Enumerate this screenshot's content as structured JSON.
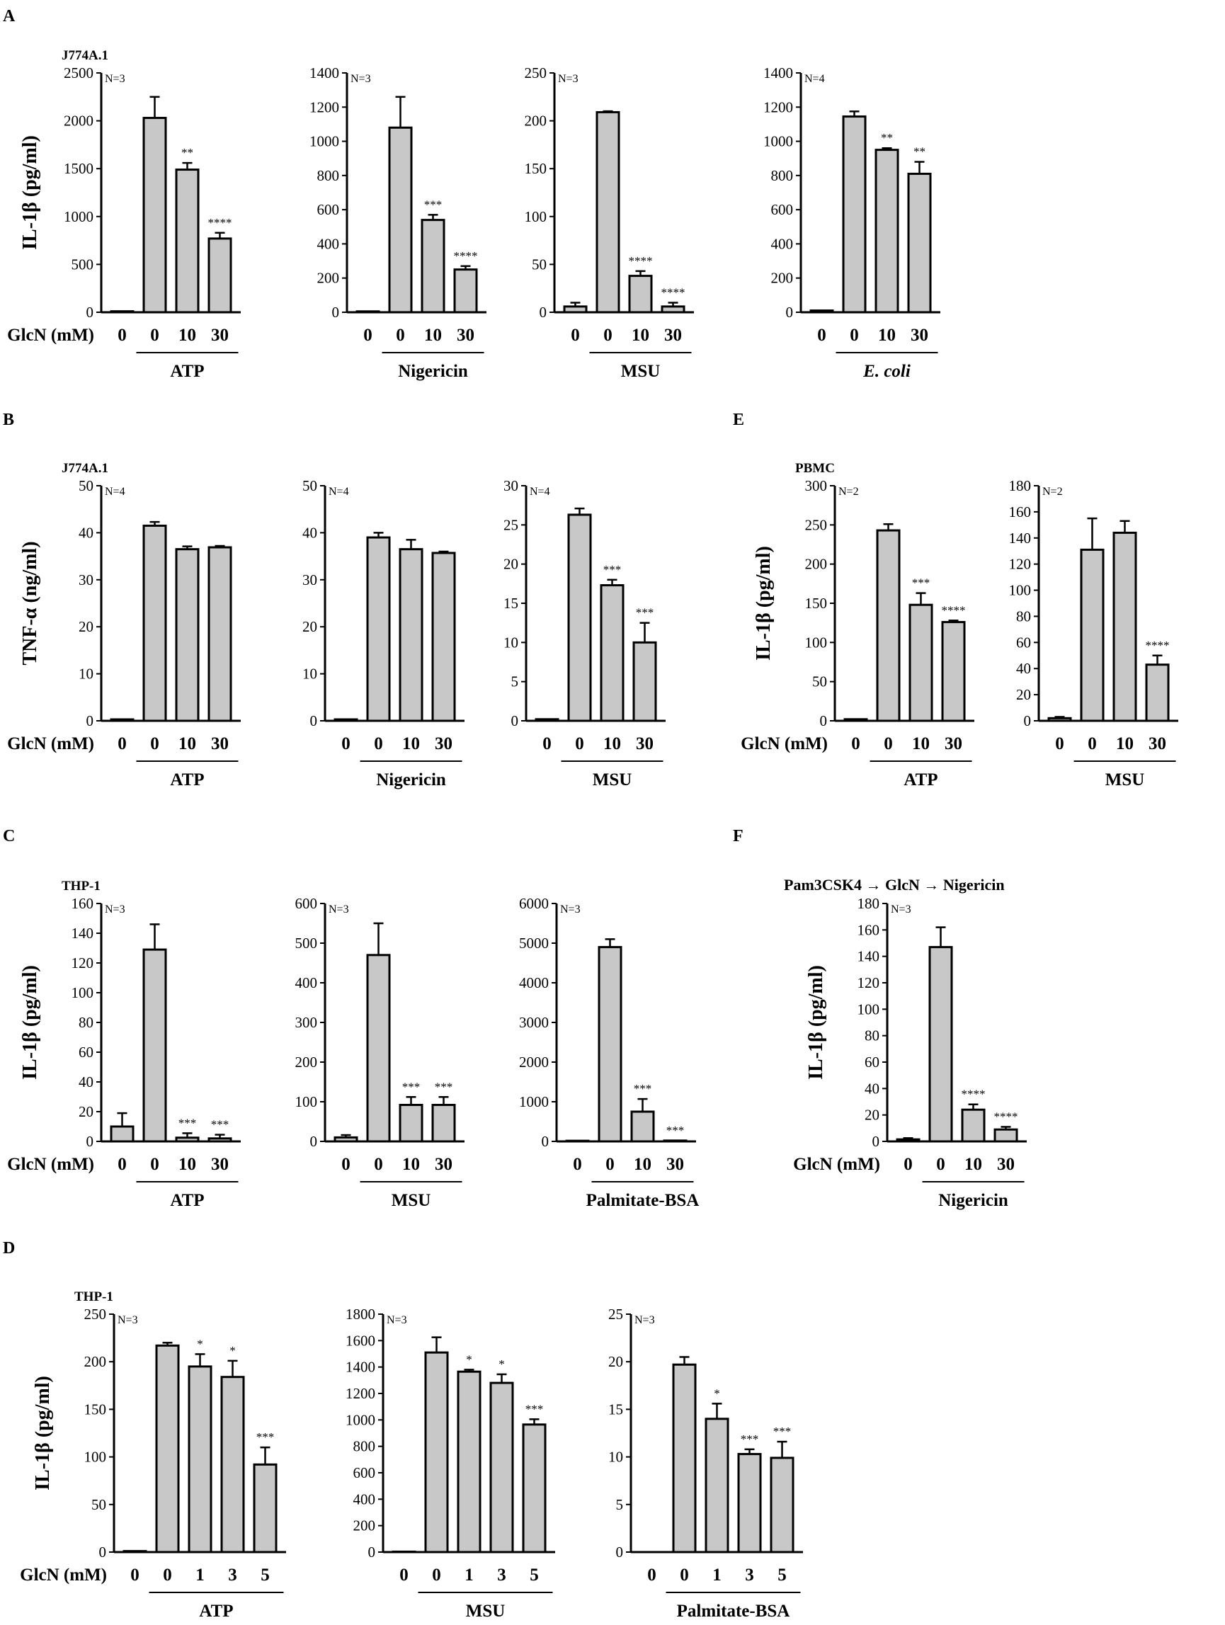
{
  "figure": {
    "glcn_label": "GlcN (mM)",
    "panel_letters": [
      "A",
      "B",
      "C",
      "D",
      "E",
      "F"
    ],
    "colors": {
      "bar": "#c8c8c8",
      "stroke": "#000000",
      "star": "#777777"
    }
  },
  "chart_data": [
    {
      "type": "bar",
      "panel": "A",
      "cell_label": "J774A.1",
      "n_label": "N=3",
      "ylabel": "IL-1β (pg/ml)",
      "ylim": [
        0,
        2500
      ],
      "yticks": [
        0,
        500,
        1000,
        1500,
        2000,
        2500
      ],
      "categories": [
        "0",
        "0",
        "10",
        "30"
      ],
      "values": [
        10,
        2030,
        1490,
        770
      ],
      "errors": [
        0,
        220,
        70,
        60
      ],
      "stars": [
        "",
        "",
        "**",
        "****"
      ],
      "group": "ATP",
      "group_italic": false,
      "show_glcn": true
    },
    {
      "type": "bar",
      "panel": "A",
      "n_label": "N=3",
      "ylim": [
        0,
        1400
      ],
      "yticks": [
        0,
        200,
        400,
        600,
        800,
        1000,
        1200,
        1400
      ],
      "categories": [
        "0",
        "0",
        "10",
        "30"
      ],
      "values": [
        5,
        1080,
        540,
        250
      ],
      "errors": [
        0,
        180,
        30,
        20
      ],
      "stars": [
        "",
        "",
        "***",
        "****"
      ],
      "group": "Nigericin",
      "group_italic": false
    },
    {
      "type": "bar",
      "panel": "A",
      "n_label": "N=3",
      "ylim": [
        0,
        250
      ],
      "yticks": [
        0,
        50,
        100,
        150,
        200,
        250
      ],
      "categories": [
        "0",
        "0",
        "10",
        "30"
      ],
      "values": [
        6,
        209,
        38,
        6
      ],
      "errors": [
        4,
        1,
        5,
        4
      ],
      "stars": [
        "",
        "",
        "****",
        "****"
      ],
      "group": "MSU",
      "group_italic": false
    },
    {
      "type": "bar",
      "panel": "A",
      "n_label": "N=4",
      "ylim": [
        0,
        1400
      ],
      "yticks": [
        0,
        200,
        400,
        600,
        800,
        1000,
        1200,
        1400
      ],
      "categories": [
        "0",
        "0",
        "10",
        "30"
      ],
      "values": [
        10,
        1145,
        950,
        810
      ],
      "errors": [
        0,
        30,
        10,
        70
      ],
      "stars": [
        "",
        "",
        "**",
        "**"
      ],
      "group": "E. coli",
      "group_italic": true
    },
    {
      "type": "bar",
      "panel": "B",
      "cell_label": "J774A.1",
      "n_label": "N=4",
      "ylabel": "TNF-α (ng/ml)",
      "ylim": [
        0,
        50
      ],
      "yticks": [
        0,
        10,
        20,
        30,
        40,
        50
      ],
      "categories": [
        "0",
        "0",
        "10",
        "30"
      ],
      "values": [
        0.3,
        41.5,
        36.5,
        36.9
      ],
      "errors": [
        0,
        0.8,
        0.6,
        0.3
      ],
      "stars": [
        "",
        "",
        "",
        ""
      ],
      "group": "ATP",
      "group_italic": false,
      "show_glcn": true
    },
    {
      "type": "bar",
      "panel": "B",
      "n_label": "N=4",
      "ylim": [
        0,
        50
      ],
      "yticks": [
        0,
        10,
        20,
        30,
        40,
        50
      ],
      "categories": [
        "0",
        "0",
        "10",
        "30"
      ],
      "values": [
        0.3,
        39,
        36.5,
        35.7
      ],
      "errors": [
        0,
        1,
        2,
        0.3
      ],
      "stars": [
        "",
        "",
        "",
        ""
      ],
      "group": "Nigericin",
      "group_italic": false
    },
    {
      "type": "bar",
      "panel": "B",
      "n_label": "N=4",
      "ylim": [
        0,
        30
      ],
      "yticks": [
        0,
        5,
        10,
        15,
        20,
        25,
        30
      ],
      "categories": [
        "0",
        "0",
        "10",
        "30"
      ],
      "values": [
        0.2,
        26.3,
        17.3,
        10
      ],
      "errors": [
        0,
        0.8,
        0.7,
        2.5
      ],
      "stars": [
        "",
        "",
        "***",
        "***"
      ],
      "group": "MSU",
      "group_italic": false
    },
    {
      "type": "bar",
      "panel": "E",
      "cell_label": "PBMC",
      "n_label": "N=2",
      "ylabel": "IL-1β (pg/ml)",
      "ylim": [
        0,
        300
      ],
      "yticks": [
        0,
        50,
        100,
        150,
        200,
        250,
        300
      ],
      "categories": [
        "0",
        "0",
        "10",
        "30"
      ],
      "values": [
        2,
        243,
        148,
        126
      ],
      "errors": [
        0,
        8,
        15,
        2
      ],
      "stars": [
        "",
        "",
        "***",
        "****"
      ],
      "group": "ATP",
      "group_italic": false,
      "show_glcn": true
    },
    {
      "type": "bar",
      "panel": "E",
      "n_label": "N=2",
      "ylim": [
        0,
        180
      ],
      "yticks": [
        0,
        20,
        40,
        60,
        80,
        100,
        120,
        140,
        160,
        180
      ],
      "categories": [
        "0",
        "0",
        "10",
        "30"
      ],
      "values": [
        2,
        131,
        144,
        43
      ],
      "errors": [
        1,
        24,
        9,
        7
      ],
      "stars": [
        "",
        "",
        "",
        "****"
      ],
      "group": "MSU",
      "group_italic": false
    },
    {
      "type": "bar",
      "panel": "C",
      "cell_label": "THP-1",
      "n_label": "N=3",
      "ylabel": "IL-1β (pg/ml)",
      "ylim": [
        0,
        160
      ],
      "yticks": [
        0,
        20,
        40,
        60,
        80,
        100,
        120,
        140,
        160
      ],
      "categories": [
        "0",
        "0",
        "10",
        "30"
      ],
      "values": [
        10,
        129,
        2.5,
        2
      ],
      "errors": [
        9,
        17,
        3,
        2.5
      ],
      "stars": [
        "",
        "",
        "***",
        "***"
      ],
      "group": "ATP",
      "group_italic": false,
      "show_glcn": true
    },
    {
      "type": "bar",
      "panel": "C",
      "n_label": "N=3",
      "ylim": [
        0,
        600
      ],
      "yticks": [
        0,
        100,
        200,
        300,
        400,
        500,
        600
      ],
      "categories": [
        "0",
        "0",
        "10",
        "30"
      ],
      "values": [
        10,
        470,
        92,
        92
      ],
      "errors": [
        6,
        80,
        20,
        20
      ],
      "stars": [
        "",
        "",
        "***",
        "***"
      ],
      "group": "MSU",
      "group_italic": false
    },
    {
      "type": "bar",
      "panel": "C",
      "n_label": "N=3",
      "ylim": [
        0,
        6000
      ],
      "yticks": [
        0,
        1000,
        2000,
        3000,
        4000,
        5000,
        6000
      ],
      "categories": [
        "0",
        "0",
        "10",
        "30"
      ],
      "values": [
        15,
        4900,
        750,
        20
      ],
      "errors": [
        0,
        200,
        320,
        0
      ],
      "stars": [
        "",
        "",
        "***",
        "***"
      ],
      "group": "Palmitate-BSA",
      "group_italic": false
    },
    {
      "type": "bar",
      "panel": "F",
      "cell_label": "Pam3CSK4 → GlcN → Nigericin",
      "n_label": "N=3",
      "ylabel": "IL-1β (pg/ml)",
      "ylim": [
        0,
        180
      ],
      "yticks": [
        0,
        20,
        40,
        60,
        80,
        100,
        120,
        140,
        160,
        180
      ],
      "categories": [
        "0",
        "0",
        "10",
        "30"
      ],
      "values": [
        1.5,
        147,
        24,
        9
      ],
      "errors": [
        1,
        15,
        4,
        2
      ],
      "stars": [
        "",
        "",
        "****",
        "****"
      ],
      "group": "Nigericin",
      "group_italic": false,
      "show_glcn": true
    },
    {
      "type": "bar",
      "panel": "D",
      "cell_label": "THP-1",
      "n_label": "N=3",
      "ylabel": "IL-1β (pg/ml)",
      "ylim": [
        0,
        250
      ],
      "yticks": [
        0,
        50,
        100,
        150,
        200,
        250
      ],
      "categories": [
        "0",
        "0",
        "1",
        "3",
        "5"
      ],
      "values": [
        1,
        217,
        195,
        184,
        92
      ],
      "errors": [
        0,
        3,
        13,
        17,
        18
      ],
      "stars": [
        "",
        "",
        "*",
        "*",
        "***"
      ],
      "group": "ATP",
      "group_italic": false,
      "show_glcn": true
    },
    {
      "type": "bar",
      "panel": "D",
      "n_label": "N=3",
      "ylim": [
        0,
        1800
      ],
      "yticks": [
        0,
        200,
        400,
        600,
        800,
        1000,
        1200,
        1400,
        1600,
        1800
      ],
      "categories": [
        "0",
        "0",
        "1",
        "3",
        "5"
      ],
      "values": [
        3,
        1510,
        1365,
        1280,
        965
      ],
      "errors": [
        0,
        115,
        15,
        65,
        40
      ],
      "stars": [
        "",
        "",
        "*",
        "*",
        "***"
      ],
      "group": "MSU",
      "group_italic": false
    },
    {
      "type": "bar",
      "panel": "D",
      "n_label": "N=3",
      "ylim": [
        0,
        25
      ],
      "yticks": [
        0,
        5,
        10,
        15,
        20,
        25
      ],
      "categories": [
        "0",
        "0",
        "1",
        "3",
        "5"
      ],
      "values": [
        0,
        19.7,
        14,
        10.3,
        9.9
      ],
      "errors": [
        0,
        0.8,
        1.6,
        0.5,
        1.7
      ],
      "stars": [
        "",
        "",
        "*",
        "***",
        "***"
      ],
      "group": "Palmitate-BSA",
      "group_italic": false
    }
  ]
}
